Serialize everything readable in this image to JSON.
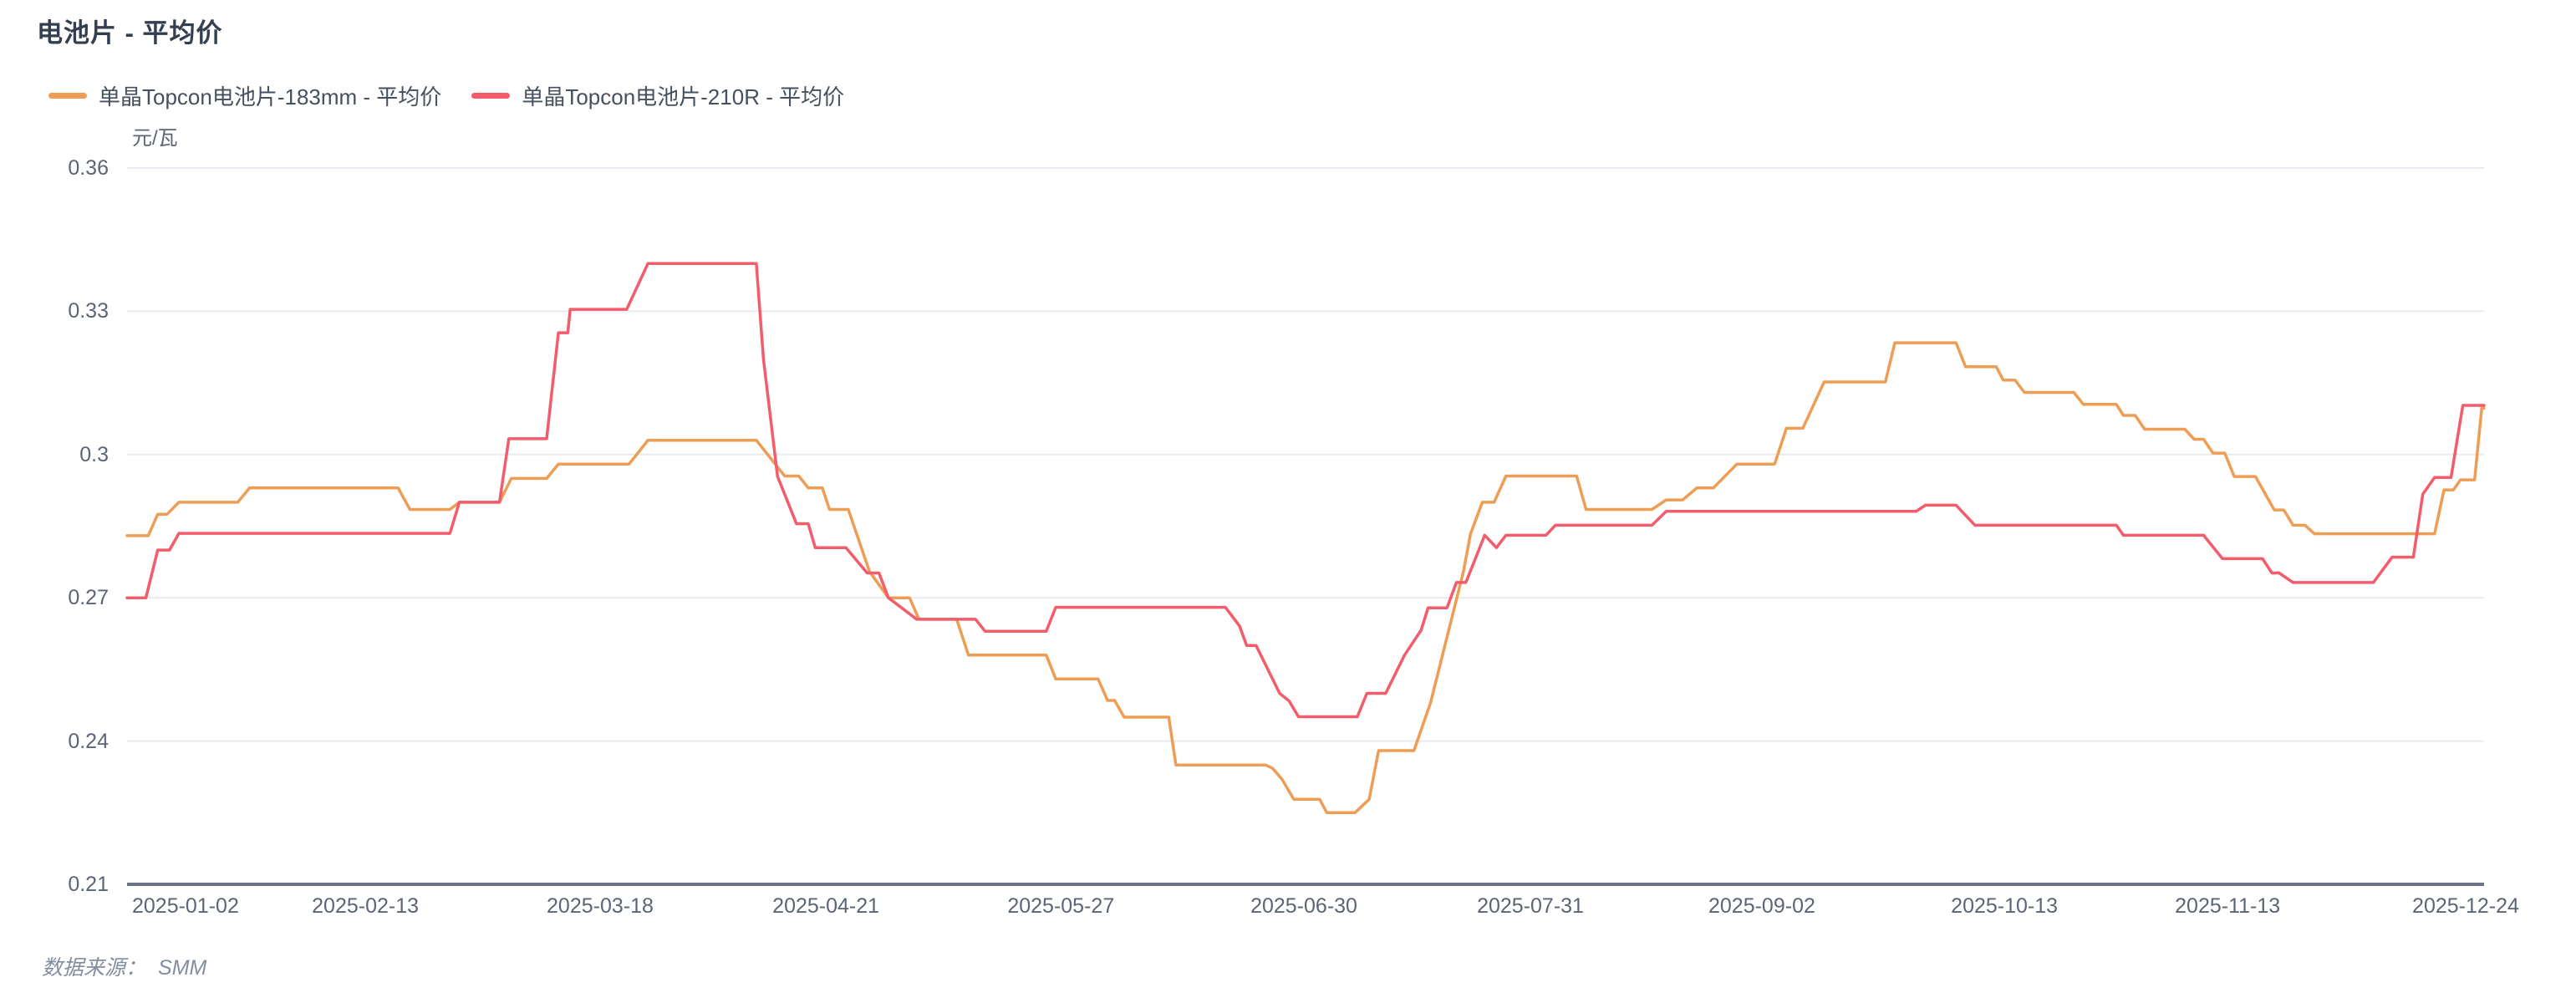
{
  "title": "电池片 - 平均价",
  "y_axis_unit": "元/瓦",
  "source": {
    "label": "数据来源：",
    "value": "SMM"
  },
  "legend": [
    {
      "label": "单晶Topcon电池片-183mm - 平均价",
      "color": "#ee9d55"
    },
    {
      "label": "单晶Topcon电池片-210R - 平均价",
      "color": "#f25c6b"
    }
  ],
  "colors": {
    "grid": "#e9ebf0",
    "axis": "#6d7386",
    "tick_text": "#5c6575"
  },
  "chart_data": {
    "type": "line",
    "title": "电池片 - 平均价",
    "ylabel": "元/瓦",
    "ylim": [
      0.21,
      0.36
    ],
    "grid": true,
    "legend_position": "top-left",
    "y_ticks": [
      {
        "label": "0.36",
        "value": 0.36
      },
      {
        "label": "0.33",
        "value": 0.33
      },
      {
        "label": "0.3",
        "value": 0.3
      },
      {
        "label": "0.27",
        "value": 0.27
      },
      {
        "label": "0.24",
        "value": 0.24
      },
      {
        "label": "0.21",
        "value": 0.21
      }
    ],
    "x_ticks": [
      {
        "label": "2025-01-02",
        "pos": 0.0248
      },
      {
        "label": "2025-02-13",
        "pos": 0.1011
      },
      {
        "label": "2025-03-18",
        "pos": 0.2007
      },
      {
        "label": "2025-04-21",
        "pos": 0.2965
      },
      {
        "label": "2025-05-27",
        "pos": 0.3962
      },
      {
        "label": "2025-06-30",
        "pos": 0.4993
      },
      {
        "label": "2025-07-31",
        "pos": 0.5954
      },
      {
        "label": "2025-09-02",
        "pos": 0.6936
      },
      {
        "label": "2025-10-13",
        "pos": 0.7965
      },
      {
        "label": "2025-11-13",
        "pos": 0.8912
      },
      {
        "label": "2025-12-24",
        "pos": 0.9922
      }
    ],
    "series": [
      {
        "name": "单晶Topcon电池片-183mm - 平均价",
        "color": "#ee9d55",
        "points": [
          [
            0,
            0.283
          ],
          [
            0.009,
            0.283
          ],
          [
            0.013,
            0.2875
          ],
          [
            0.017,
            0.2875
          ],
          [
            0.022,
            0.29
          ],
          [
            0.047,
            0.29
          ],
          [
            0.052,
            0.293
          ],
          [
            0.115,
            0.293
          ],
          [
            0.12,
            0.2885
          ],
          [
            0.137,
            0.2885
          ],
          [
            0.141,
            0.29
          ],
          [
            0.158,
            0.29
          ],
          [
            0.163,
            0.295
          ],
          [
            0.178,
            0.295
          ],
          [
            0.183,
            0.298
          ],
          [
            0.213,
            0.298
          ],
          [
            0.221,
            0.303
          ],
          [
            0.267,
            0.303
          ],
          [
            0.279,
            0.2955
          ],
          [
            0.285,
            0.2955
          ],
          [
            0.289,
            0.293
          ],
          [
            0.295,
            0.293
          ],
          [
            0.298,
            0.2885
          ],
          [
            0.306,
            0.2885
          ],
          [
            0.315,
            0.2755
          ],
          [
            0.323,
            0.27
          ],
          [
            0.332,
            0.27
          ],
          [
            0.336,
            0.2655
          ],
          [
            0.352,
            0.2655
          ],
          [
            0.357,
            0.258
          ],
          [
            0.39,
            0.258
          ],
          [
            0.394,
            0.253
          ],
          [
            0.412,
            0.253
          ],
          [
            0.416,
            0.2485
          ],
          [
            0.419,
            0.2485
          ],
          [
            0.423,
            0.245
          ],
          [
            0.442,
            0.245
          ],
          [
            0.445,
            0.235
          ],
          [
            0.483,
            0.235
          ],
          [
            0.486,
            0.2343
          ],
          [
            0.49,
            0.232
          ],
          [
            0.495,
            0.2278
          ],
          [
            0.506,
            0.2278
          ],
          [
            0.509,
            0.225
          ],
          [
            0.521,
            0.225
          ],
          [
            0.527,
            0.2278
          ],
          [
            0.531,
            0.238
          ],
          [
            0.546,
            0.238
          ],
          [
            0.553,
            0.248
          ],
          [
            0.567,
            0.2755
          ],
          [
            0.57,
            0.2834
          ],
          [
            0.575,
            0.29
          ],
          [
            0.58,
            0.29
          ],
          [
            0.585,
            0.2955
          ],
          [
            0.615,
            0.2955
          ],
          [
            0.619,
            0.2885
          ],
          [
            0.647,
            0.2885
          ],
          [
            0.653,
            0.2905
          ],
          [
            0.66,
            0.2905
          ],
          [
            0.666,
            0.293
          ],
          [
            0.673,
            0.293
          ],
          [
            0.683,
            0.298
          ],
          [
            0.699,
            0.298
          ],
          [
            0.704,
            0.3055
          ],
          [
            0.711,
            0.3055
          ],
          [
            0.72,
            0.3152
          ],
          [
            0.746,
            0.3152
          ],
          [
            0.75,
            0.3234
          ],
          [
            0.776,
            0.3234
          ],
          [
            0.78,
            0.3184
          ],
          [
            0.793,
            0.3184
          ],
          [
            0.796,
            0.3156
          ],
          [
            0.801,
            0.3156
          ],
          [
            0.805,
            0.313
          ],
          [
            0.826,
            0.313
          ],
          [
            0.83,
            0.3105
          ],
          [
            0.844,
            0.3105
          ],
          [
            0.847,
            0.3082
          ],
          [
            0.852,
            0.3082
          ],
          [
            0.856,
            0.3053
          ],
          [
            0.873,
            0.3053
          ],
          [
            0.877,
            0.3032
          ],
          [
            0.881,
            0.3032
          ],
          [
            0.885,
            0.3003
          ],
          [
            0.89,
            0.3003
          ],
          [
            0.894,
            0.2954
          ],
          [
            0.903,
            0.2954
          ],
          [
            0.911,
            0.2884
          ],
          [
            0.915,
            0.2884
          ],
          [
            0.919,
            0.2852
          ],
          [
            0.924,
            0.2852
          ],
          [
            0.928,
            0.2834
          ],
          [
            0.979,
            0.2834
          ],
          [
            0.983,
            0.2926
          ],
          [
            0.987,
            0.2926
          ],
          [
            0.99,
            0.2947
          ],
          [
            0.996,
            0.2947
          ],
          [
            0.999,
            0.3097
          ],
          [
            1,
            0.3097
          ]
        ]
      },
      {
        "name": "单晶Topcon电池片-210R - 平均价",
        "color": "#f25c6b",
        "points": [
          [
            0,
            0.27
          ],
          [
            0.008,
            0.27
          ],
          [
            0.013,
            0.28
          ],
          [
            0.018,
            0.28
          ],
          [
            0.022,
            0.2835
          ],
          [
            0.137,
            0.2835
          ],
          [
            0.141,
            0.29
          ],
          [
            0.158,
            0.29
          ],
          [
            0.162,
            0.3033
          ],
          [
            0.178,
            0.3033
          ],
          [
            0.183,
            0.3255
          ],
          [
            0.187,
            0.3255
          ],
          [
            0.188,
            0.3304
          ],
          [
            0.212,
            0.3304
          ],
          [
            0.221,
            0.34
          ],
          [
            0.267,
            0.34
          ],
          [
            0.27,
            0.32
          ],
          [
            0.276,
            0.2954
          ],
          [
            0.284,
            0.2855
          ],
          [
            0.289,
            0.2855
          ],
          [
            0.292,
            0.2805
          ],
          [
            0.305,
            0.2805
          ],
          [
            0.314,
            0.2752
          ],
          [
            0.319,
            0.2752
          ],
          [
            0.323,
            0.27
          ],
          [
            0.335,
            0.2655
          ],
          [
            0.36,
            0.2655
          ],
          [
            0.364,
            0.263
          ],
          [
            0.39,
            0.263
          ],
          [
            0.394,
            0.268
          ],
          [
            0.466,
            0.268
          ],
          [
            0.472,
            0.2641
          ],
          [
            0.475,
            0.26
          ],
          [
            0.479,
            0.26
          ],
          [
            0.489,
            0.25
          ],
          [
            0.493,
            0.2484
          ],
          [
            0.497,
            0.2451
          ],
          [
            0.522,
            0.2451
          ],
          [
            0.526,
            0.25
          ],
          [
            0.534,
            0.25
          ],
          [
            0.542,
            0.258
          ],
          [
            0.549,
            0.2632
          ],
          [
            0.552,
            0.2679
          ],
          [
            0.56,
            0.2679
          ],
          [
            0.564,
            0.2732
          ],
          [
            0.568,
            0.2732
          ],
          [
            0.576,
            0.2831
          ],
          [
            0.581,
            0.2805
          ],
          [
            0.585,
            0.2831
          ],
          [
            0.602,
            0.2831
          ],
          [
            0.606,
            0.2852
          ],
          [
            0.647,
            0.2852
          ],
          [
            0.653,
            0.2881
          ],
          [
            0.759,
            0.2881
          ],
          [
            0.763,
            0.2894
          ],
          [
            0.776,
            0.2894
          ],
          [
            0.784,
            0.2852
          ],
          [
            0.844,
            0.2852
          ],
          [
            0.847,
            0.2831
          ],
          [
            0.881,
            0.2831
          ],
          [
            0.889,
            0.2782
          ],
          [
            0.906,
            0.2782
          ],
          [
            0.91,
            0.2752
          ],
          [
            0.913,
            0.2752
          ],
          [
            0.919,
            0.2732
          ],
          [
            0.953,
            0.2732
          ],
          [
            0.961,
            0.2785
          ],
          [
            0.97,
            0.2785
          ],
          [
            0.974,
            0.2917
          ],
          [
            0.979,
            0.2952
          ],
          [
            0.986,
            0.2952
          ],
          [
            0.991,
            0.3103
          ],
          [
            1,
            0.3103
          ]
        ]
      }
    ]
  }
}
